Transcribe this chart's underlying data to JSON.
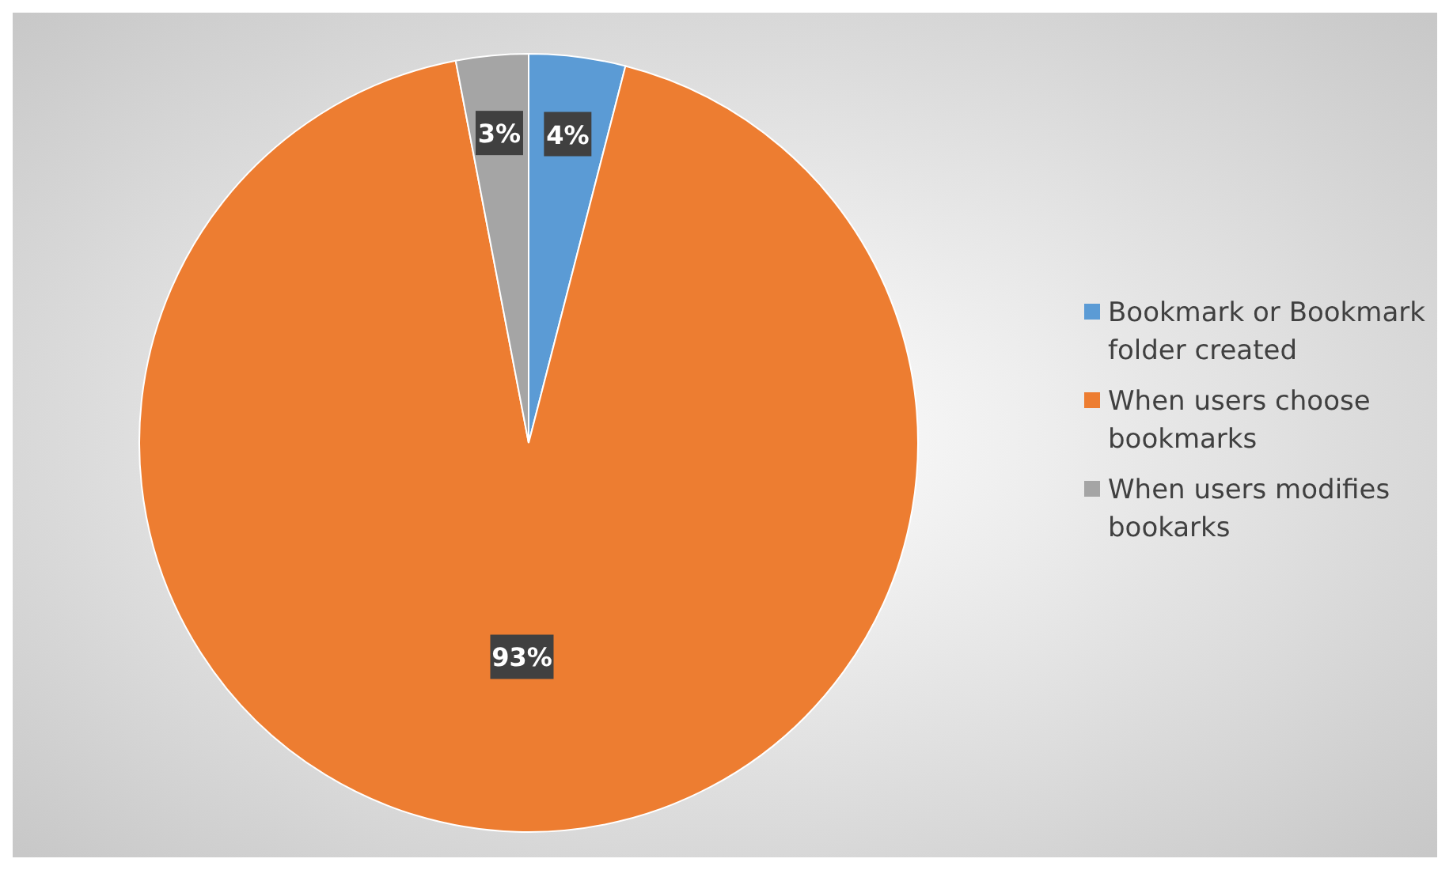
{
  "chart_data": {
    "type": "pie",
    "categories": [
      "Bookmark or Bookmark folder created",
      "When users choose bookmarks",
      "When users modifies bookarks"
    ],
    "values": [
      4,
      93,
      3
    ],
    "colors": [
      "#5b9bd5",
      "#ed7d31",
      "#a5a5a5"
    ],
    "value_labels": [
      "4%",
      "93%",
      "3%"
    ],
    "legend": "right"
  }
}
